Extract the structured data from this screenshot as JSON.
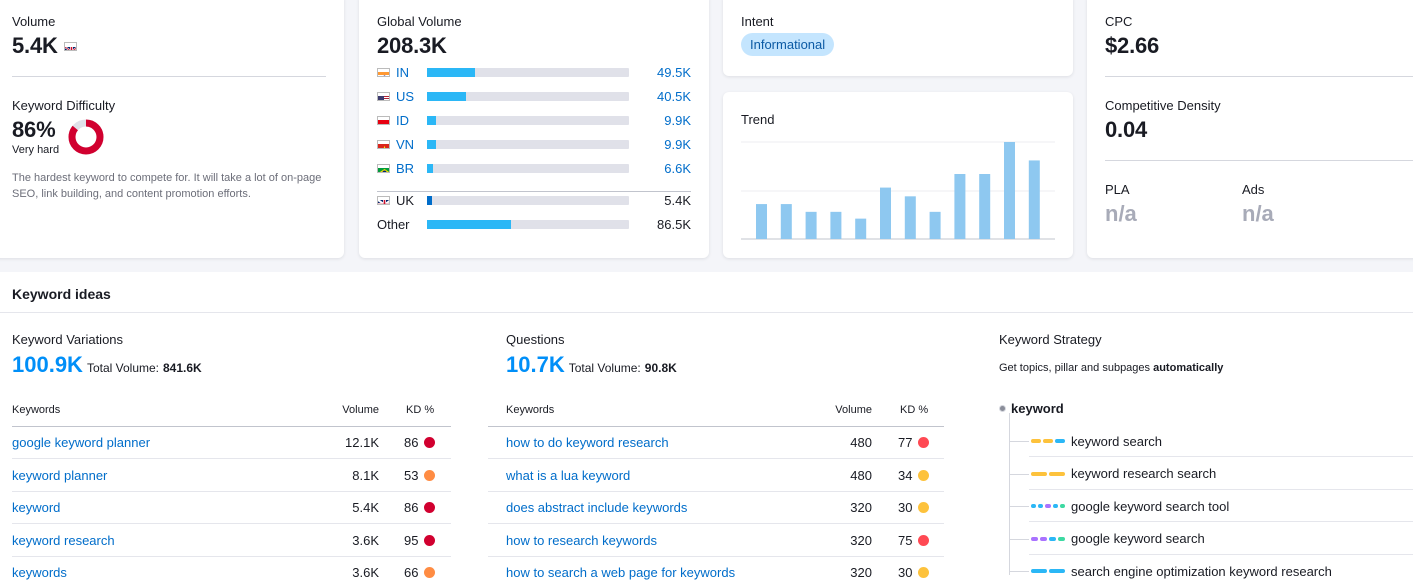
{
  "volume": {
    "label": "Volume",
    "value": "5.4K",
    "flag": "uk-flag-icon"
  },
  "difficulty": {
    "label": "Keyword Difficulty",
    "value": "86%",
    "level": "Very hard",
    "percent": 86,
    "color": "#d1002f",
    "description": "The hardest keyword to compete for. It will take a lot of on-page SEO, link building, and content promotion efforts."
  },
  "global_volume": {
    "label": "Global Volume",
    "value": "208.3K",
    "rows": [
      {
        "code": "IN",
        "value": "49.5K",
        "share": 0.238,
        "linked": true
      },
      {
        "code": "US",
        "value": "40.5K",
        "share": 0.194,
        "linked": true
      },
      {
        "code": "ID",
        "value": "9.9K",
        "share": 0.047,
        "linked": true
      },
      {
        "code": "VN",
        "value": "9.9K",
        "share": 0.047,
        "linked": true
      },
      {
        "code": "BR",
        "value": "6.6K",
        "share": 0.032,
        "linked": true
      },
      {
        "code": "UK",
        "value": "5.4K",
        "share": 0.026,
        "linked": false
      },
      {
        "code": "Other",
        "value": "86.5K",
        "share": 0.415,
        "linked": false
      }
    ]
  },
  "intent": {
    "label": "Intent",
    "badge": "Informational"
  },
  "trend": {
    "label": "Trend",
    "values": [
      0.36,
      0.36,
      0.28,
      0.28,
      0.21,
      0.53,
      0.44,
      0.28,
      0.67,
      0.67,
      1.0,
      0.81
    ]
  },
  "cpc": {
    "label": "CPC",
    "value": "$2.66"
  },
  "competitive_density": {
    "label": "Competitive Density",
    "value": "0.04"
  },
  "pla": {
    "label": "PLA",
    "value": "n/a"
  },
  "ads": {
    "label": "Ads",
    "value": "n/a"
  },
  "keyword_ideas": {
    "title": "Keyword ideas",
    "variations": {
      "title": "Keyword Variations",
      "count": "100.9K",
      "total_label": "Total Volume:",
      "total_value": "841.6K",
      "col_keywords": "Keywords",
      "col_volume": "Volume",
      "col_kd": "KD %",
      "rows": [
        {
          "keyword": "google keyword planner",
          "volume": "12.1K",
          "kd": "86",
          "color": "#d1002f"
        },
        {
          "keyword": "keyword planner",
          "volume": "8.1K",
          "kd": "53",
          "color": "#ff8c43"
        },
        {
          "keyword": "keyword",
          "volume": "5.4K",
          "kd": "86",
          "color": "#d1002f"
        },
        {
          "keyword": "keyword research",
          "volume": "3.6K",
          "kd": "95",
          "color": "#d1002f"
        },
        {
          "keyword": "keywords",
          "volume": "3.6K",
          "kd": "66",
          "color": "#ff8c43"
        }
      ]
    },
    "questions": {
      "title": "Questions",
      "count": "10.7K",
      "total_label": "Total Volume:",
      "total_value": "90.8K",
      "col_keywords": "Keywords",
      "col_volume": "Volume",
      "col_kd": "KD %",
      "rows": [
        {
          "keyword": "how to do keyword research",
          "volume": "480",
          "kd": "77",
          "color": "#ff4953"
        },
        {
          "keyword": "what is a lua keyword",
          "volume": "480",
          "kd": "34",
          "color": "#fdc23c"
        },
        {
          "keyword": "does abstract include keywords",
          "volume": "320",
          "kd": "30",
          "color": "#fdc23c"
        },
        {
          "keyword": "how to research keywords",
          "volume": "320",
          "kd": "75",
          "color": "#ff4953"
        },
        {
          "keyword": "how to search a web page for keywords",
          "volume": "320",
          "kd": "30",
          "color": "#fdc23c"
        }
      ]
    },
    "strategy": {
      "title": "Keyword Strategy",
      "subtitle_prefix": "Get topics, pillar and subpages ",
      "subtitle_bold": "automatically",
      "root": "keyword",
      "items": [
        {
          "label": "keyword search",
          "segs": [
            "#fdc23c",
            "#fdc23c",
            "#2bb7f6"
          ]
        },
        {
          "label": "keyword research search",
          "segs": [
            "#fdc23c",
            "#fdc23c"
          ]
        },
        {
          "label": "google keyword search tool",
          "segs": [
            "#2bb7f6",
            "#2bb7f6",
            "#a972ff",
            "#2bb7f6",
            "#3dd9a2"
          ]
        },
        {
          "label": "google keyword search",
          "segs": [
            "#a972ff",
            "#a972ff",
            "#2bb7f6",
            "#3dd9a2"
          ]
        },
        {
          "label": "search engine optimization keyword research",
          "segs": [
            "#2bb7f6",
            "#2bb7f6"
          ]
        }
      ]
    }
  }
}
